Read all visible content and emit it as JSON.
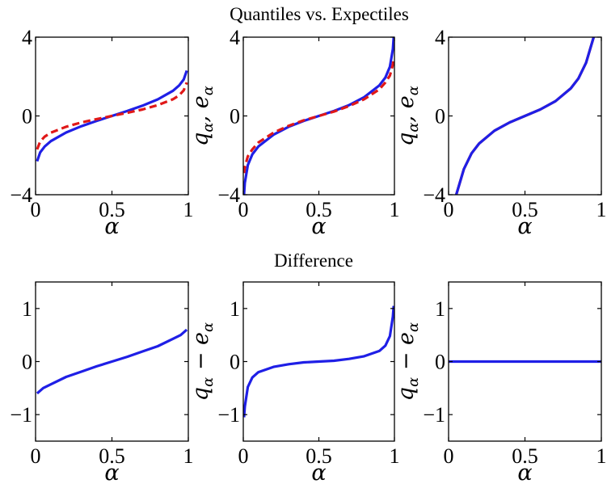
{
  "figure": {
    "top_title": "Quantiles  vs. Expectiles",
    "bottom_title": "Difference"
  },
  "colors": {
    "quantile": "#1f1fe6",
    "expectile": "#e01818",
    "axes": "#000000"
  },
  "chart_data": [
    {
      "type": "line",
      "xlabel": "α",
      "ylabel": "",
      "xlim": [
        0,
        1
      ],
      "ylim": [
        -4,
        4
      ],
      "xticks": [
        "0",
        "0.5",
        "1"
      ],
      "yticks": [
        "-4",
        "0",
        "4"
      ],
      "series": [
        {
          "color": "#1f1fe6",
          "style": "solid",
          "x": [
            0.01,
            0.03,
            0.06,
            0.1,
            0.2,
            0.3,
            0.4,
            0.5,
            0.6,
            0.7,
            0.8,
            0.9,
            0.94,
            0.97,
            0.99
          ],
          "y": [
            -2.3,
            -1.85,
            -1.55,
            -1.28,
            -0.84,
            -0.52,
            -0.25,
            0.0,
            0.25,
            0.52,
            0.84,
            1.28,
            1.55,
            1.85,
            2.3
          ]
        },
        {
          "color": "#e01818",
          "style": "dashed",
          "x": [
            0.01,
            0.03,
            0.06,
            0.1,
            0.2,
            0.3,
            0.4,
            0.5,
            0.6,
            0.7,
            0.8,
            0.9,
            0.94,
            0.97,
            0.99
          ],
          "y": [
            -1.7,
            -1.3,
            -1.05,
            -0.85,
            -0.55,
            -0.33,
            -0.16,
            0.0,
            0.16,
            0.33,
            0.55,
            0.85,
            1.05,
            1.3,
            1.7
          ]
        }
      ]
    },
    {
      "type": "line",
      "xlabel": "α",
      "ylabel": "qα, eα",
      "xlim": [
        0,
        1
      ],
      "ylim": [
        -4,
        4
      ],
      "xticks": [
        "0",
        "0.5",
        "1"
      ],
      "yticks": [
        "-4",
        "0",
        "4"
      ],
      "series": [
        {
          "color": "#1f1fe6",
          "style": "solid",
          "x": [
            0.005,
            0.01,
            0.03,
            0.06,
            0.1,
            0.2,
            0.3,
            0.4,
            0.5,
            0.6,
            0.7,
            0.8,
            0.9,
            0.94,
            0.97,
            0.99,
            0.995
          ],
          "y": [
            -4.0,
            -3.4,
            -2.5,
            -1.95,
            -1.55,
            -0.95,
            -0.55,
            -0.25,
            0.0,
            0.25,
            0.55,
            0.95,
            1.55,
            1.95,
            2.5,
            3.4,
            4.0
          ]
        },
        {
          "color": "#e01818",
          "style": "dashed",
          "x": [
            0.005,
            0.01,
            0.03,
            0.06,
            0.1,
            0.2,
            0.3,
            0.4,
            0.5,
            0.6,
            0.7,
            0.8,
            0.9,
            0.94,
            0.97,
            0.99,
            0.995
          ],
          "y": [
            -2.9,
            -2.6,
            -2.05,
            -1.7,
            -1.35,
            -0.85,
            -0.5,
            -0.22,
            0.0,
            0.22,
            0.5,
            0.85,
            1.35,
            1.7,
            2.05,
            2.6,
            2.9
          ]
        }
      ]
    },
    {
      "type": "line",
      "xlabel": "α",
      "ylabel": "qα, eα",
      "xlim": [
        0,
        1
      ],
      "ylim": [
        -4,
        4
      ],
      "xticks": [
        "0",
        "0.5",
        "1"
      ],
      "yticks": [
        "-4",
        "0",
        "4"
      ],
      "series": [
        {
          "color": "#e01818",
          "style": "solid",
          "x": [
            0.05,
            0.1,
            0.15,
            0.2,
            0.3,
            0.4,
            0.5,
            0.6,
            0.7,
            0.8,
            0.85,
            0.9,
            0.95
          ],
          "y": [
            -4.0,
            -2.7,
            -1.9,
            -1.4,
            -0.75,
            -0.33,
            0.0,
            0.33,
            0.75,
            1.4,
            1.9,
            2.7,
            4.0
          ]
        },
        {
          "color": "#1f1fe6",
          "style": "solid",
          "x": [
            0.05,
            0.1,
            0.15,
            0.2,
            0.3,
            0.4,
            0.5,
            0.6,
            0.7,
            0.8,
            0.85,
            0.9,
            0.95
          ],
          "y": [
            -4.0,
            -2.7,
            -1.9,
            -1.4,
            -0.75,
            -0.33,
            0.0,
            0.33,
            0.75,
            1.4,
            1.9,
            2.7,
            4.0
          ]
        }
      ]
    },
    {
      "type": "line",
      "xlabel": "α",
      "ylabel": "",
      "xlim": [
        0,
        1
      ],
      "ylim": [
        -1.5,
        1.5
      ],
      "xticks": [
        "0",
        "0.5",
        "1"
      ],
      "yticks": [
        "-1",
        "0",
        "1"
      ],
      "series": [
        {
          "color": "#1f1fe6",
          "style": "solid",
          "x": [
            0.01,
            0.05,
            0.1,
            0.2,
            0.3,
            0.4,
            0.5,
            0.6,
            0.7,
            0.8,
            0.9,
            0.95,
            0.99
          ],
          "y": [
            -0.6,
            -0.5,
            -0.43,
            -0.29,
            -0.19,
            -0.09,
            0.0,
            0.09,
            0.19,
            0.29,
            0.43,
            0.5,
            0.6
          ]
        }
      ]
    },
    {
      "type": "line",
      "xlabel": "α",
      "ylabel": "qα − eα",
      "xlim": [
        0,
        1
      ],
      "ylim": [
        -1.5,
        1.5
      ],
      "xticks": [
        "0",
        "0.5",
        "1"
      ],
      "yticks": [
        "-1",
        "0",
        "1"
      ],
      "series": [
        {
          "color": "#1f1fe6",
          "style": "solid",
          "x": [
            0.005,
            0.01,
            0.03,
            0.06,
            0.1,
            0.2,
            0.3,
            0.4,
            0.5,
            0.6,
            0.7,
            0.8,
            0.9,
            0.94,
            0.97,
            0.99,
            0.995
          ],
          "y": [
            -1.05,
            -0.85,
            -0.48,
            -0.3,
            -0.2,
            -0.1,
            -0.05,
            -0.015,
            0.0,
            0.015,
            0.05,
            0.1,
            0.2,
            0.3,
            0.48,
            0.85,
            1.05
          ]
        }
      ]
    },
    {
      "type": "line",
      "xlabel": "α",
      "ylabel": "qα − eα",
      "xlim": [
        0,
        1
      ],
      "ylim": [
        -1.5,
        1.5
      ],
      "xticks": [
        "0",
        "0.5",
        "1"
      ],
      "yticks": [
        "-1",
        "0",
        "1"
      ],
      "series": [
        {
          "color": "#1f1fe6",
          "style": "solid",
          "x": [
            0.0,
            0.25,
            0.5,
            0.75,
            1.0
          ],
          "y": [
            0.0,
            0.0,
            0.0,
            0.0,
            0.0
          ]
        }
      ]
    }
  ]
}
